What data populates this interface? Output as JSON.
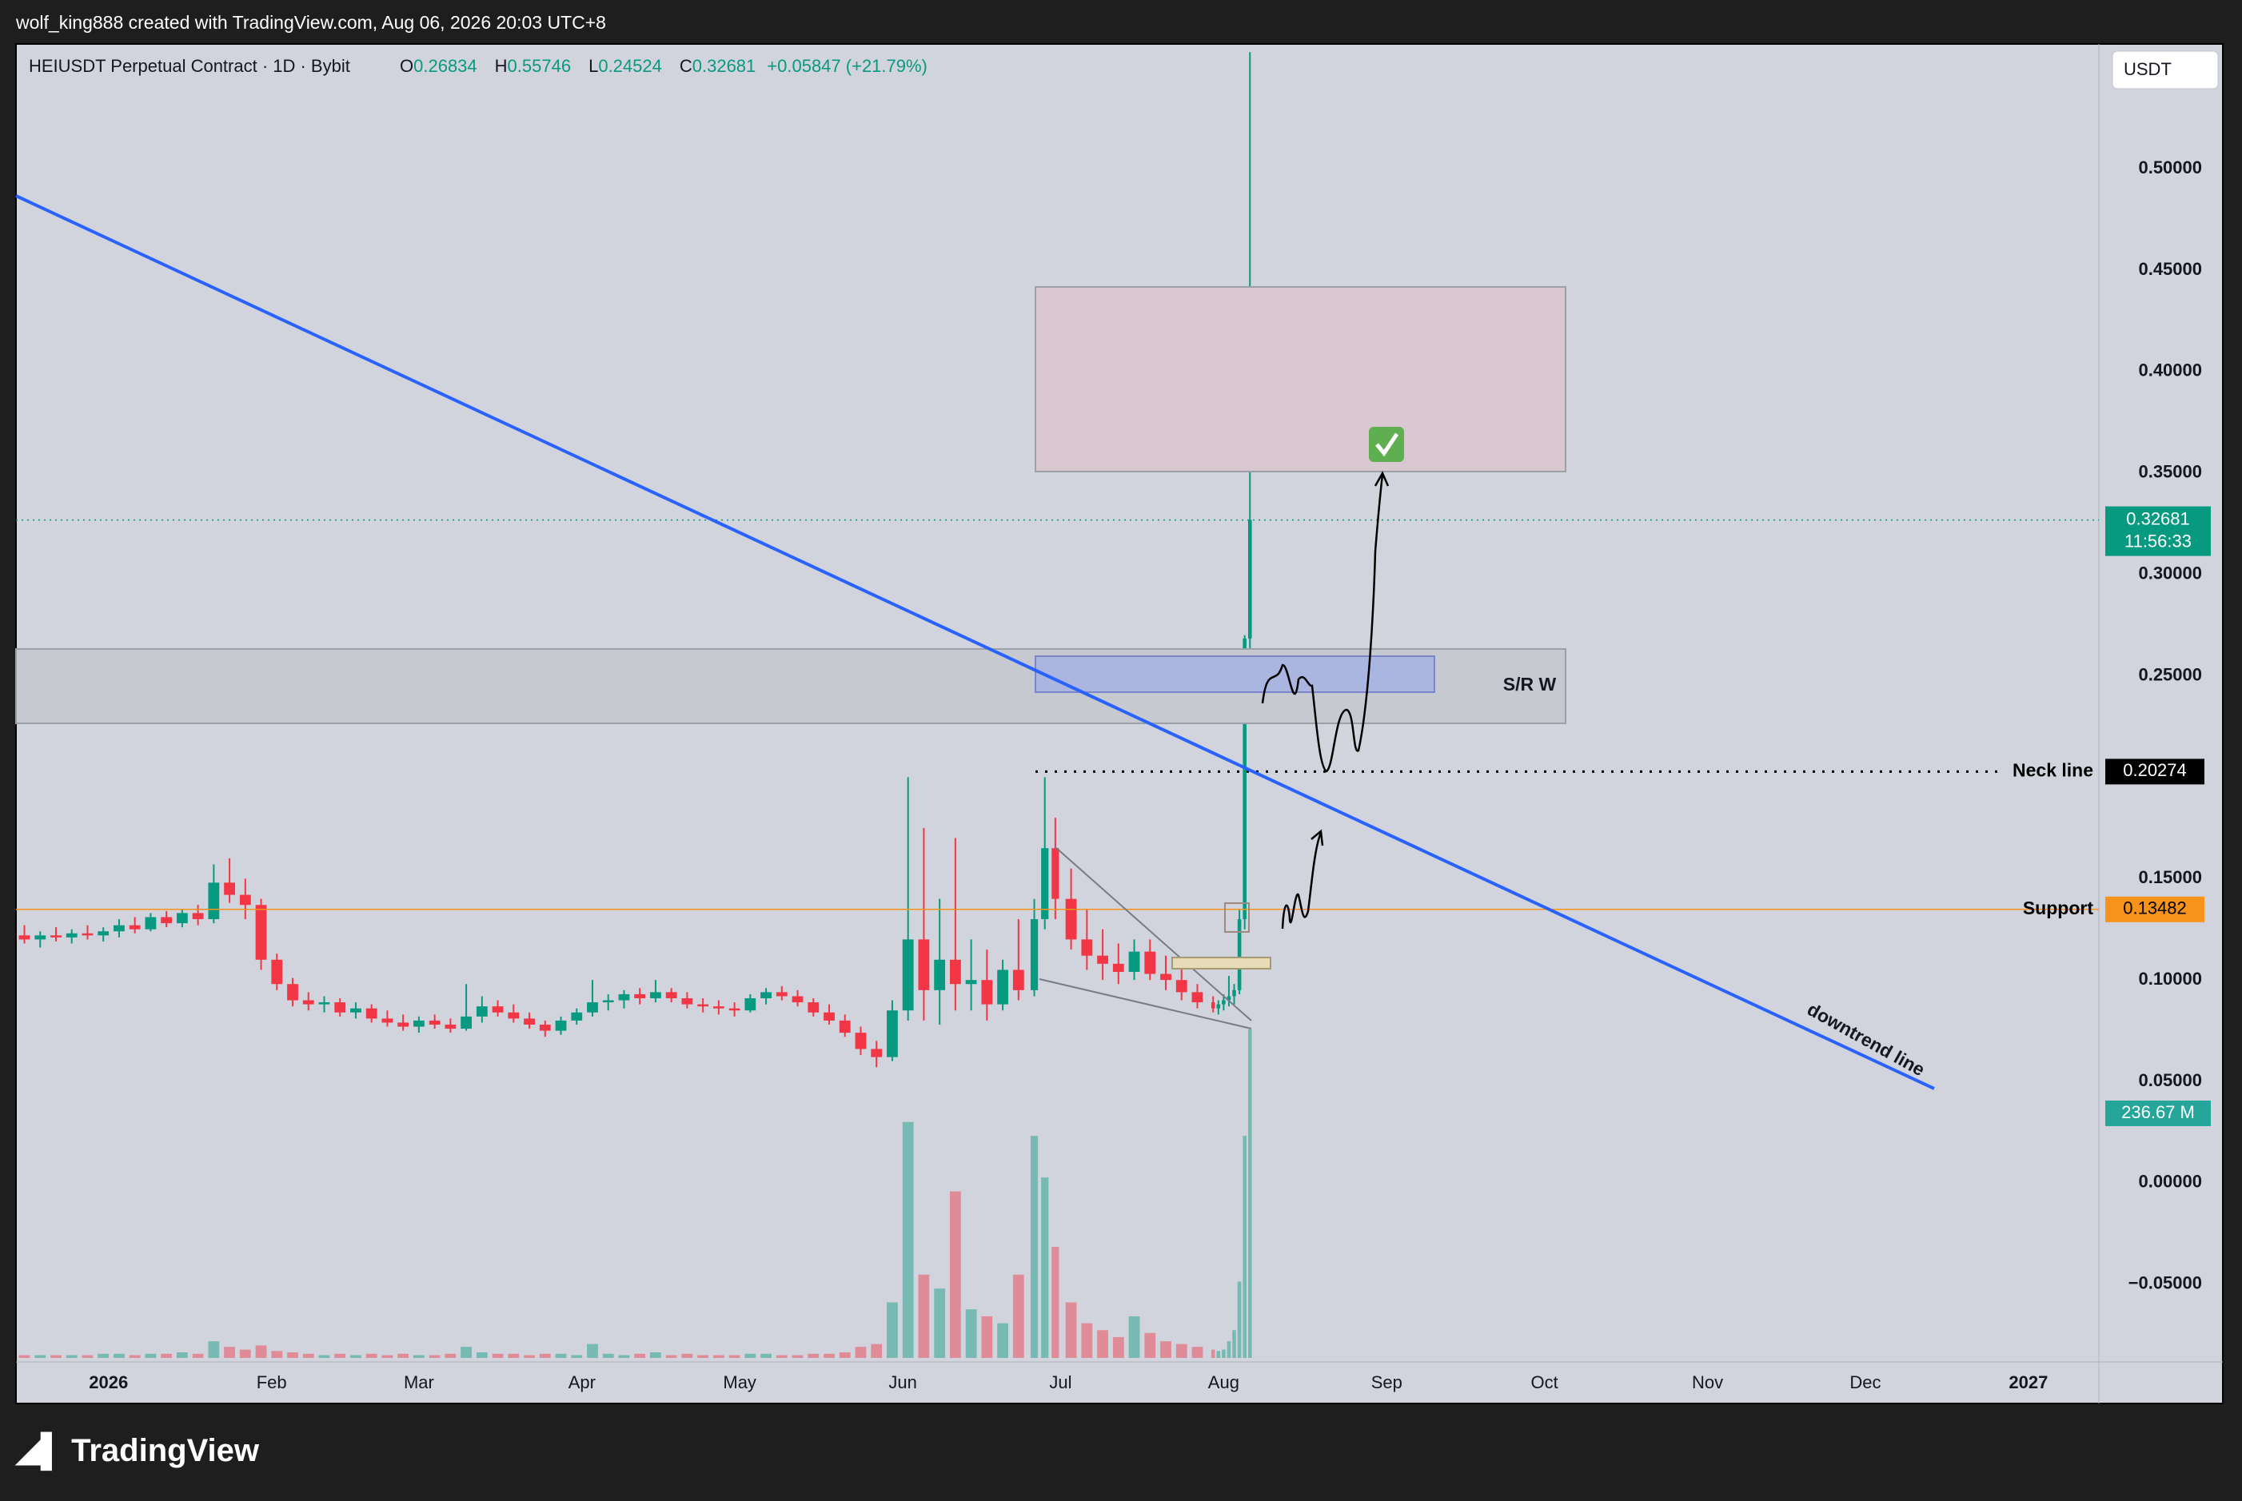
{
  "header": "wolf_king888 created with TradingView.com, Aug 06, 2026 20:03 UTC+8",
  "brand": "TradingView",
  "chart_data": {
    "type": "candlestick",
    "symbol": "HEIUSDT Perpetual Contract · 1D · Bybit",
    "ohlc_letters": [
      "O",
      "H",
      "L",
      "C"
    ],
    "change": "+0.05847 (+21.79%)",
    "currency": "USDT",
    "countdown": "11:56:33",
    "up_color": "#089981",
    "down_color": "#f23645",
    "candles": {
      "x": [
        -16,
        -13,
        -10,
        -7,
        -4,
        -1,
        2,
        5,
        8,
        11,
        14,
        17,
        20,
        23,
        26,
        29,
        32,
        35,
        38,
        41,
        44,
        47,
        50,
        53,
        56,
        59,
        62,
        65,
        68,
        71,
        74,
        77,
        80,
        83,
        86,
        89,
        92,
        95,
        98,
        101,
        104,
        107,
        110,
        113,
        116,
        119,
        122,
        125,
        128,
        131,
        134,
        137,
        140,
        143,
        146,
        149,
        152,
        155,
        158,
        161,
        164,
        167,
        170,
        173,
        176,
        178,
        180,
        183,
        186,
        189,
        192,
        195,
        198,
        201,
        204,
        207,
        210,
        211,
        212,
        213,
        214,
        215,
        216,
        217
      ],
      "open": [
        0.122,
        0.12,
        0.122,
        0.121,
        0.123,
        0.122,
        0.124,
        0.127,
        0.125,
        0.131,
        0.128,
        0.133,
        0.13,
        0.148,
        0.142,
        0.137,
        0.11,
        0.098,
        0.09,
        0.088,
        0.089,
        0.084,
        0.086,
        0.081,
        0.079,
        0.077,
        0.08,
        0.078,
        0.076,
        0.082,
        0.087,
        0.084,
        0.081,
        0.078,
        0.075,
        0.08,
        0.084,
        0.089,
        0.09,
        0.093,
        0.091,
        0.094,
        0.091,
        0.088,
        0.087,
        0.086,
        0.085,
        0.091,
        0.094,
        0.092,
        0.089,
        0.084,
        0.08,
        0.074,
        0.066,
        0.062,
        0.085,
        0.12,
        0.095,
        0.11,
        0.098,
        0.1,
        0.088,
        0.105,
        0.095,
        0.13,
        0.165,
        0.14,
        0.12,
        0.112,
        0.108,
        0.104,
        0.114,
        0.103,
        0.1,
        0.094,
        0.089,
        0.086,
        0.088,
        0.09,
        0.092,
        0.095,
        0.13,
        0.26834
      ],
      "high": [
        0.127,
        0.124,
        0.126,
        0.125,
        0.127,
        0.126,
        0.13,
        0.131,
        0.133,
        0.134,
        0.135,
        0.137,
        0.157,
        0.16,
        0.15,
        0.14,
        0.113,
        0.101,
        0.094,
        0.092,
        0.091,
        0.089,
        0.088,
        0.085,
        0.083,
        0.082,
        0.083,
        0.081,
        0.098,
        0.092,
        0.09,
        0.088,
        0.084,
        0.08,
        0.082,
        0.086,
        0.1,
        0.093,
        0.095,
        0.096,
        0.1,
        0.096,
        0.094,
        0.091,
        0.09,
        0.089,
        0.093,
        0.096,
        0.097,
        0.095,
        0.091,
        0.088,
        0.083,
        0.077,
        0.07,
        0.09,
        0.2,
        0.175,
        0.14,
        0.17,
        0.12,
        0.115,
        0.11,
        0.13,
        0.14,
        0.2,
        0.18,
        0.155,
        0.135,
        0.125,
        0.118,
        0.12,
        0.12,
        0.112,
        0.106,
        0.098,
        0.092,
        0.09,
        0.093,
        0.102,
        0.098,
        0.135,
        0.27,
        0.55746
      ],
      "low": [
        0.118,
        0.116,
        0.119,
        0.118,
        0.12,
        0.119,
        0.121,
        0.123,
        0.124,
        0.126,
        0.126,
        0.127,
        0.128,
        0.138,
        0.13,
        0.105,
        0.095,
        0.087,
        0.085,
        0.084,
        0.082,
        0.081,
        0.079,
        0.077,
        0.075,
        0.074,
        0.076,
        0.074,
        0.075,
        0.079,
        0.082,
        0.079,
        0.076,
        0.072,
        0.073,
        0.078,
        0.082,
        0.085,
        0.086,
        0.088,
        0.089,
        0.089,
        0.086,
        0.084,
        0.083,
        0.082,
        0.084,
        0.088,
        0.09,
        0.087,
        0.082,
        0.078,
        0.072,
        0.063,
        0.057,
        0.06,
        0.08,
        0.08,
        0.078,
        0.085,
        0.085,
        0.08,
        0.085,
        0.09,
        0.092,
        0.125,
        0.13,
        0.115,
        0.105,
        0.1,
        0.098,
        0.1,
        0.1,
        0.095,
        0.09,
        0.086,
        0.084,
        0.083,
        0.085,
        0.087,
        0.088,
        0.093,
        0.125,
        0.24524
      ],
      "close": [
        0.12,
        0.122,
        0.121,
        0.123,
        0.122,
        0.124,
        0.127,
        0.125,
        0.131,
        0.128,
        0.133,
        0.13,
        0.148,
        0.142,
        0.137,
        0.11,
        0.098,
        0.09,
        0.088,
        0.089,
        0.084,
        0.086,
        0.081,
        0.079,
        0.077,
        0.08,
        0.078,
        0.076,
        0.082,
        0.087,
        0.084,
        0.081,
        0.078,
        0.075,
        0.08,
        0.084,
        0.089,
        0.09,
        0.093,
        0.091,
        0.094,
        0.091,
        0.088,
        0.087,
        0.086,
        0.085,
        0.091,
        0.094,
        0.092,
        0.089,
        0.084,
        0.08,
        0.074,
        0.066,
        0.062,
        0.085,
        0.12,
        0.095,
        0.11,
        0.098,
        0.1,
        0.088,
        0.105,
        0.095,
        0.13,
        0.165,
        0.14,
        0.12,
        0.112,
        0.108,
        0.104,
        0.114,
        0.103,
        0.1,
        0.094,
        0.089,
        0.086,
        0.088,
        0.09,
        0.092,
        0.095,
        0.13,
        0.26834,
        0.32681
      ],
      "volume": [
        2,
        2,
        2,
        2,
        2,
        3,
        3,
        2,
        3,
        3,
        4,
        3,
        12,
        8,
        6,
        9,
        5,
        4,
        3,
        2,
        3,
        2,
        3,
        2,
        3,
        2,
        2,
        3,
        8,
        4,
        3,
        3,
        2,
        3,
        3,
        2,
        10,
        3,
        2,
        3,
        4,
        2,
        3,
        2,
        2,
        2,
        3,
        3,
        2,
        2,
        3,
        3,
        4,
        8,
        10,
        40,
        170,
        60,
        50,
        120,
        35,
        30,
        25,
        60,
        160,
        130,
        80,
        40,
        25,
        20,
        15,
        30,
        18,
        12,
        10,
        8,
        6,
        5,
        6,
        12,
        20,
        55,
        160,
        236.67
      ]
    },
    "volume_label": "236.67 M",
    "levels": [
      {
        "name": "Neck line",
        "value": 0.20274,
        "color": "#000000"
      },
      {
        "name": "Support",
        "value": 0.13482,
        "color": "#f7931a"
      }
    ],
    "annotations": [
      "S/R W",
      "downtrend line"
    ],
    "xlim": [
      -17.6,
      378.4
    ],
    "xticks": [
      {
        "value": 0,
        "label": "2026"
      },
      {
        "value": 31,
        "label": "Feb"
      },
      {
        "value": 59,
        "label": "Mar"
      },
      {
        "value": 90,
        "label": "Apr"
      },
      {
        "value": 120,
        "label": "May"
      },
      {
        "value": 151,
        "label": "Jun"
      },
      {
        "value": 181,
        "label": "Jul"
      },
      {
        "value": 212,
        "label": "Aug"
      },
      {
        "value": 243,
        "label": "Sep"
      },
      {
        "value": 273,
        "label": "Oct"
      },
      {
        "value": 304,
        "label": "Nov"
      },
      {
        "value": 334,
        "label": "Dec"
      },
      {
        "value": 365,
        "label": "2027"
      }
    ],
    "ylim": [
      -0.0883,
      0.5615
    ],
    "yticks": [
      {
        "value": -0.05,
        "label": "−0.05000"
      },
      {
        "value": 0,
        "label": "0.00000"
      },
      {
        "value": 0.05,
        "label": "0.05000"
      },
      {
        "value": 0.1,
        "label": "0.10000"
      },
      {
        "value": 0.15,
        "label": "0.15000"
      },
      {
        "value": 0.25,
        "label": "0.25000"
      },
      {
        "value": 0.3,
        "label": "0.30000"
      },
      {
        "value": 0.35,
        "label": "0.35000"
      },
      {
        "value": 0.4,
        "label": "0.40000"
      },
      {
        "value": 0.45,
        "label": "0.45000"
      },
      {
        "value": 0.5,
        "label": "0.50000"
      }
    ]
  }
}
